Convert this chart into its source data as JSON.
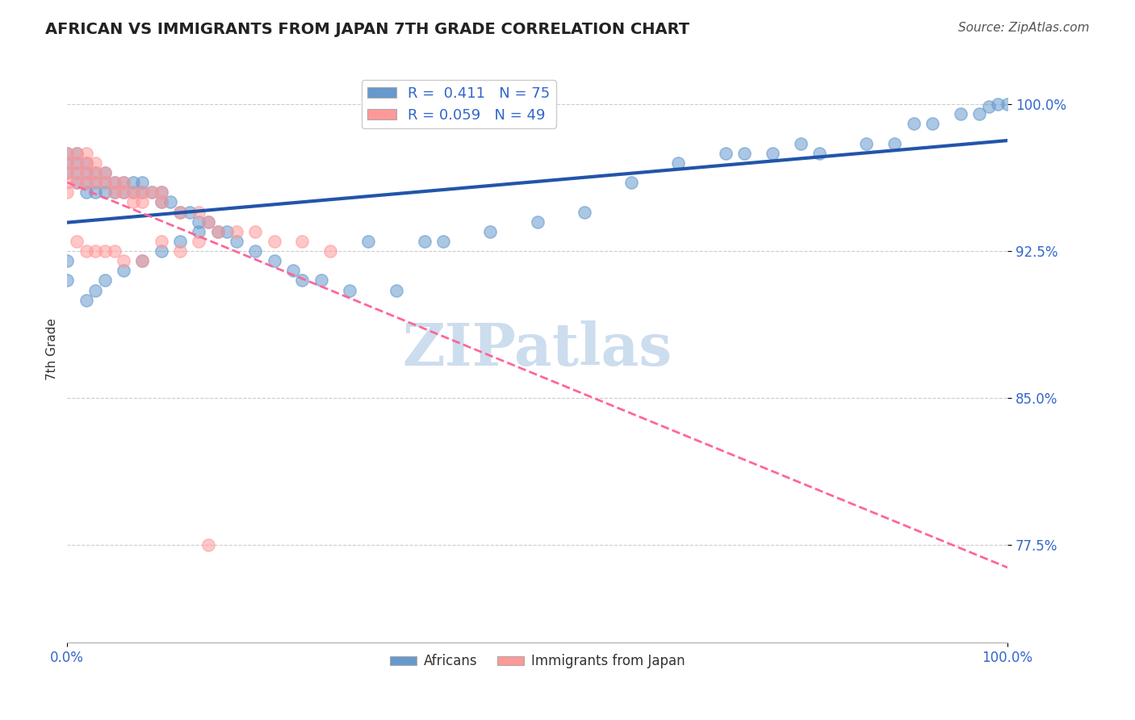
{
  "title": "AFRICAN VS IMMIGRANTS FROM JAPAN 7TH GRADE CORRELATION CHART",
  "source": "Source: ZipAtlas.com",
  "ylabel": "7th Grade",
  "xlim": [
    0.0,
    1.0
  ],
  "ylim": [
    0.725,
    1.025
  ],
  "yticks": [
    0.775,
    0.85,
    0.925,
    1.0
  ],
  "ytick_labels": [
    "77.5%",
    "85.0%",
    "92.5%",
    "100.0%"
  ],
  "xtick_labels": [
    "0.0%",
    "100.0%"
  ],
  "legend_blue_R": "0.411",
  "legend_blue_N": "75",
  "legend_pink_R": "0.059",
  "legend_pink_N": "49",
  "blue_color": "#6699CC",
  "pink_color": "#FF9999",
  "trend_blue_color": "#2255AA",
  "trend_pink_color": "#FF6699",
  "blue_scatter_x": [
    0.0,
    0.0,
    0.0,
    0.01,
    0.01,
    0.01,
    0.01,
    0.02,
    0.02,
    0.02,
    0.02,
    0.03,
    0.03,
    0.03,
    0.04,
    0.04,
    0.04,
    0.05,
    0.05,
    0.06,
    0.06,
    0.07,
    0.07,
    0.08,
    0.08,
    0.09,
    0.1,
    0.1,
    0.11,
    0.12,
    0.13,
    0.14,
    0.15,
    0.16,
    0.17,
    0.18,
    0.2,
    0.22,
    0.24,
    0.25,
    0.27,
    0.3,
    0.32,
    0.35,
    0.38,
    0.4,
    0.45,
    0.5,
    0.55,
    0.6,
    0.65,
    0.7,
    0.72,
    0.75,
    0.78,
    0.8,
    0.85,
    0.88,
    0.9,
    0.92,
    0.95,
    0.97,
    0.98,
    0.99,
    1.0,
    0.0,
    0.0,
    0.02,
    0.03,
    0.04,
    0.06,
    0.08,
    0.1,
    0.12,
    0.14
  ],
  "blue_scatter_y": [
    0.97,
    0.965,
    0.975,
    0.97,
    0.96,
    0.965,
    0.975,
    0.96,
    0.955,
    0.965,
    0.97,
    0.96,
    0.955,
    0.965,
    0.955,
    0.96,
    0.965,
    0.955,
    0.96,
    0.955,
    0.96,
    0.955,
    0.96,
    0.96,
    0.955,
    0.955,
    0.95,
    0.955,
    0.95,
    0.945,
    0.945,
    0.94,
    0.94,
    0.935,
    0.935,
    0.93,
    0.925,
    0.92,
    0.915,
    0.91,
    0.91,
    0.905,
    0.93,
    0.905,
    0.93,
    0.93,
    0.935,
    0.94,
    0.945,
    0.96,
    0.97,
    0.975,
    0.975,
    0.975,
    0.98,
    0.975,
    0.98,
    0.98,
    0.99,
    0.99,
    0.995,
    0.995,
    0.999,
    1.0,
    1.0,
    0.92,
    0.91,
    0.9,
    0.905,
    0.91,
    0.915,
    0.92,
    0.925,
    0.93,
    0.935
  ],
  "pink_scatter_x": [
    0.0,
    0.0,
    0.0,
    0.0,
    0.0,
    0.01,
    0.01,
    0.01,
    0.01,
    0.02,
    0.02,
    0.02,
    0.02,
    0.03,
    0.03,
    0.03,
    0.04,
    0.04,
    0.05,
    0.05,
    0.06,
    0.06,
    0.07,
    0.07,
    0.08,
    0.08,
    0.09,
    0.1,
    0.1,
    0.12,
    0.14,
    0.15,
    0.18,
    0.2,
    0.22,
    0.25,
    0.28,
    0.01,
    0.02,
    0.03,
    0.04,
    0.15,
    0.05,
    0.06,
    0.08,
    0.1,
    0.12,
    0.14,
    0.16
  ],
  "pink_scatter_y": [
    0.975,
    0.97,
    0.965,
    0.96,
    0.955,
    0.975,
    0.97,
    0.965,
    0.96,
    0.975,
    0.97,
    0.965,
    0.96,
    0.97,
    0.965,
    0.96,
    0.965,
    0.96,
    0.96,
    0.955,
    0.96,
    0.955,
    0.955,
    0.95,
    0.955,
    0.95,
    0.955,
    0.95,
    0.955,
    0.945,
    0.945,
    0.94,
    0.935,
    0.935,
    0.93,
    0.93,
    0.925,
    0.93,
    0.925,
    0.925,
    0.925,
    0.775,
    0.925,
    0.92,
    0.92,
    0.93,
    0.925,
    0.93,
    0.935
  ],
  "watermark": "ZIPatlas",
  "watermark_color": "#CCDDEE",
  "background_color": "#FFFFFF",
  "grid_color": "#CCCCCC"
}
